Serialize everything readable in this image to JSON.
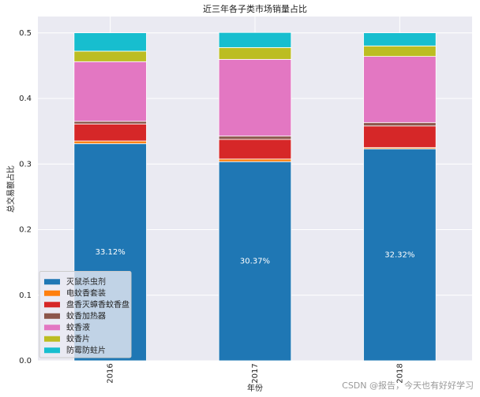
{
  "chart_data": {
    "type": "stacked_bar",
    "title": "近三年各子类市场销量占比",
    "x_label": "年份",
    "y_label": "总交易额占比",
    "categories": [
      "2016",
      "2017",
      "2018"
    ],
    "series": [
      {
        "name": "灭鼠杀虫剂",
        "color": "#1f77b4",
        "values": [
          0.3312,
          0.3037,
          0.3232
        ],
        "value_labels": [
          "33.12%",
          "30.37%",
          "32.32%"
        ]
      },
      {
        "name": "电蚊香套装",
        "color": "#ff7f0e",
        "values": [
          0.004,
          0.004,
          0.002
        ]
      },
      {
        "name": "盘香灭蟑香蚊香盘",
        "color": "#d62728",
        "values": [
          0.026,
          0.03,
          0.033
        ]
      },
      {
        "name": "蚊香加热器",
        "color": "#8c564b",
        "values": [
          0.004,
          0.005,
          0.005
        ]
      },
      {
        "name": "蚊香液",
        "color": "#e377c2",
        "values": [
          0.091,
          0.117,
          0.101
        ]
      },
      {
        "name": "蚊香片",
        "color": "#bcbd22",
        "values": [
          0.016,
          0.018,
          0.016
        ]
      },
      {
        "name": "防霉防蛀片",
        "color": "#17becf",
        "values": [
          0.028,
          0.023,
          0.02
        ]
      }
    ],
    "ylim": [
      0,
      0.525
    ],
    "yticks": [
      {
        "value": 0,
        "label": "0.0"
      },
      {
        "value": 0.1,
        "label": "0.1"
      },
      {
        "value": 0.2,
        "label": "0.2"
      },
      {
        "value": 0.3,
        "label": "0.3"
      },
      {
        "value": 0.4,
        "label": "0.4"
      },
      {
        "value": 0.5,
        "label": "0.5"
      }
    ],
    "grid": true,
    "legend_position": "lower left",
    "watermark": "CSDN @报告，今天也有好好学习"
  }
}
